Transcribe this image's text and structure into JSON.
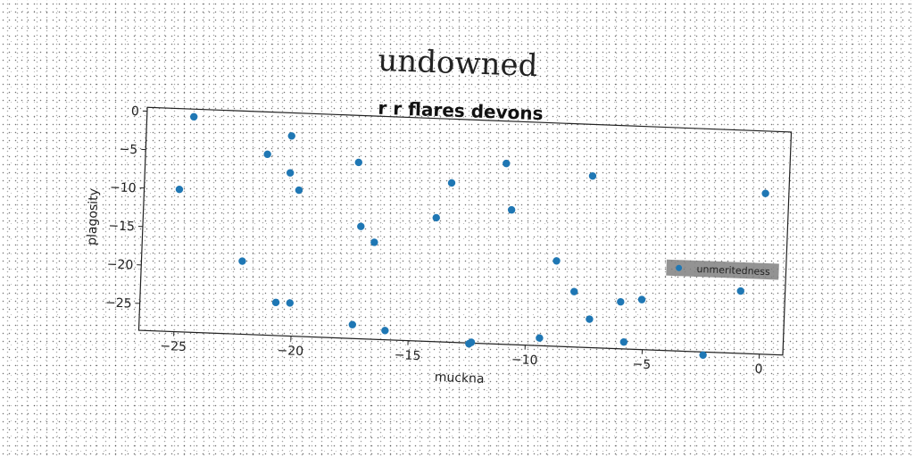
{
  "chart_data": {
    "type": "scatter",
    "title": "undowned",
    "subtitle": "r r flares devons",
    "xlabel": "muckna",
    "ylabel": "plagosity",
    "xlim": [
      -26.5,
      1.0
    ],
    "ylim": [
      -28.5,
      0.5
    ],
    "x_ticks": [
      -25,
      -20,
      -15,
      -10,
      -5,
      0
    ],
    "y_ticks": [
      0,
      -5,
      -10,
      -15,
      -20,
      -25
    ],
    "x_tick_labels": [
      "−25",
      "−20",
      "−15",
      "−10",
      "−5",
      "0"
    ],
    "y_tick_labels": [
      "0",
      "−5",
      "−10",
      "−15",
      "−20",
      "−25"
    ],
    "grid": false,
    "legend_position": "right",
    "colors": {
      "series": "#1f77b4",
      "legend_bg": "#808080"
    },
    "series": [
      {
        "name": "unmeritedness",
        "points": [
          {
            "x": -24.5,
            "y": -0.5
          },
          {
            "x": -25.0,
            "y": -10.0
          },
          {
            "x": -21.3,
            "y": -5.0
          },
          {
            "x": -20.3,
            "y": -2.5
          },
          {
            "x": -20.3,
            "y": -7.3
          },
          {
            "x": -19.9,
            "y": -9.5
          },
          {
            "x": -22.2,
            "y": -19.0
          },
          {
            "x": -20.7,
            "y": -24.2
          },
          {
            "x": -20.1,
            "y": -24.2
          },
          {
            "x": -17.4,
            "y": -5.6
          },
          {
            "x": -17.2,
            "y": -13.9
          },
          {
            "x": -16.6,
            "y": -15.9
          },
          {
            "x": -17.4,
            "y": -26.7
          },
          {
            "x": -16.0,
            "y": -27.3
          },
          {
            "x": -14.0,
            "y": -12.4
          },
          {
            "x": -13.4,
            "y": -7.8
          },
          {
            "x": -12.4,
            "y": -28.6
          },
          {
            "x": -12.3,
            "y": -28.4
          },
          {
            "x": -11.1,
            "y": -5.0
          },
          {
            "x": -10.8,
            "y": -11.0
          },
          {
            "x": -9.4,
            "y": -27.5
          },
          {
            "x": -8.8,
            "y": -17.4
          },
          {
            "x": -8.0,
            "y": -21.3
          },
          {
            "x": -7.4,
            "y": -6.2
          },
          {
            "x": -7.3,
            "y": -24.8
          },
          {
            "x": -6.0,
            "y": -22.4
          },
          {
            "x": -5.8,
            "y": -27.6
          },
          {
            "x": -5.1,
            "y": -22.0
          },
          {
            "x": -2.4,
            "y": -28.9
          },
          {
            "x": -0.9,
            "y": -20.4
          },
          {
            "x": 0.0,
            "y": -7.6
          }
        ]
      }
    ]
  }
}
